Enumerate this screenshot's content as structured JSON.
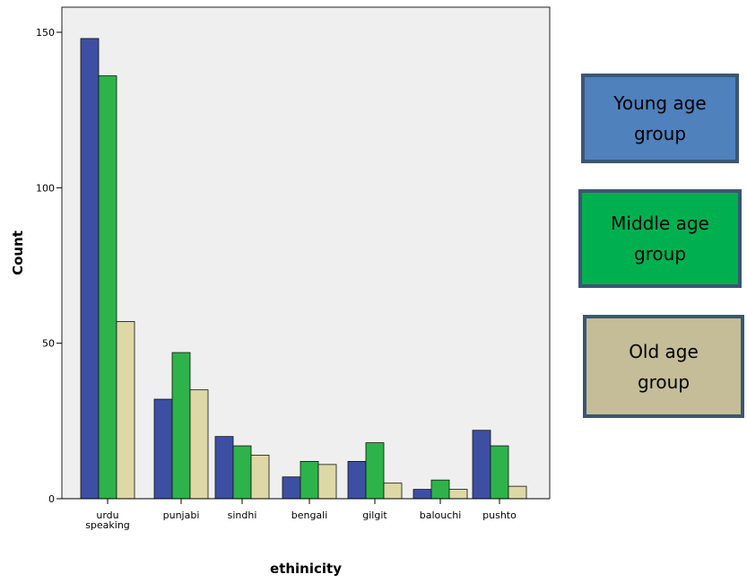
{
  "chart_data": {
    "type": "bar",
    "xlabel": "ethinicity",
    "ylabel": "Count",
    "ylim": [
      0,
      150
    ],
    "yticks": [
      0,
      50,
      100,
      150
    ],
    "categories": [
      [
        "urdu",
        "speaking"
      ],
      [
        "punjabi"
      ],
      [
        "sindhi"
      ],
      [
        "bengali"
      ],
      [
        "gilgit"
      ],
      [
        "balouchi"
      ],
      [
        "pushto"
      ]
    ],
    "series": [
      {
        "name": "Young age group",
        "color": "#3d4fa3",
        "values": [
          148,
          32,
          20,
          7,
          12,
          3,
          22
        ]
      },
      {
        "name": "Middle age group",
        "color": "#2db34a",
        "values": [
          136,
          47,
          17,
          12,
          18,
          6,
          17
        ]
      },
      {
        "name": "Old age group",
        "color": "#ddd8a6",
        "values": [
          57,
          35,
          14,
          11,
          5,
          3,
          4
        ]
      }
    ],
    "plot_background": "#efefef",
    "grid": false,
    "legend_position": "right"
  },
  "legend": [
    {
      "line1": "Young age",
      "line2": "group",
      "fill": "#4f81bd"
    },
    {
      "line1": "Middle age",
      "line2": "group",
      "fill": "#00b050"
    },
    {
      "line1": "Old age",
      "line2": "group",
      "fill": "#c4bd97"
    }
  ]
}
